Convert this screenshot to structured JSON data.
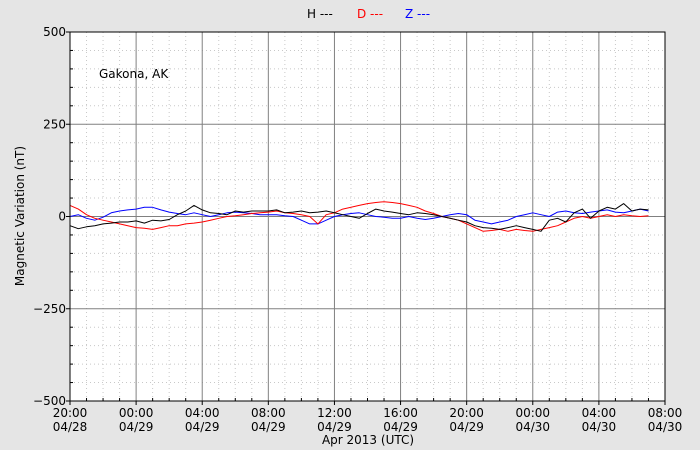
{
  "chart_data": {
    "type": "line",
    "title": "",
    "xlabel": "Apr 2013 (UTC)",
    "ylabel": "Magnetic Variation (nT)",
    "annotation": "Gakona, AK",
    "xlim": [
      0,
      36
    ],
    "ylim": [
      -500,
      500
    ],
    "y_ticks": [
      500,
      250,
      0,
      -250,
      -500
    ],
    "y_tick_labels": [
      "500",
      "250",
      "0",
      "−250",
      "−500"
    ],
    "x_ticks": [
      0,
      4,
      8,
      12,
      16,
      20,
      24,
      28,
      32,
      36
    ],
    "x_tick_labels": [
      [
        "20:00",
        "04/28"
      ],
      [
        "00:00",
        "04/29"
      ],
      [
        "04:00",
        "04/29"
      ],
      [
        "08:00",
        "04/29"
      ],
      [
        "12:00",
        "04/29"
      ],
      [
        "16:00",
        "04/29"
      ],
      [
        "20:00",
        "04/29"
      ],
      [
        "00:00",
        "04/30"
      ],
      [
        "04:00",
        "04/30"
      ],
      [
        "08:00",
        "04/30"
      ]
    ],
    "grid": true,
    "legend": [
      {
        "label": "H ---",
        "color": "#000000"
      },
      {
        "label": "D ---",
        "color": "#ff0000"
      },
      {
        "label": "Z ---",
        "color": "#0000ff"
      }
    ],
    "series": [
      {
        "color": "#000000",
        "x": [
          0,
          0.5,
          1,
          1.5,
          2,
          2.5,
          3,
          3.5,
          4,
          4.5,
          5,
          5.5,
          6,
          6.5,
          7,
          7.5,
          8,
          8.5,
          9,
          9.5,
          10,
          10.5,
          11,
          11.5,
          12,
          12.5,
          13,
          13.5,
          14,
          14.5,
          15,
          15.5,
          16,
          16.5,
          17,
          17.5,
          18,
          18.5,
          19,
          19.5,
          20,
          20.5,
          21,
          21.5,
          22,
          22.5,
          23,
          23.5,
          24,
          24.5,
          25,
          25.5,
          26,
          26.5,
          27,
          27.5,
          28,
          28.5,
          29,
          29.5,
          30,
          30.5,
          31,
          31.5,
          32,
          32.5,
          33,
          33.5,
          34,
          34.5,
          35
        ],
        "y": [
          -25,
          -33,
          -28,
          -25,
          -20,
          -18,
          -15,
          -15,
          -12,
          -18,
          -10,
          -12,
          -8,
          5,
          15,
          30,
          18,
          10,
          8,
          5,
          15,
          12,
          15,
          15,
          15,
          18,
          10,
          12,
          15,
          10,
          12,
          15,
          10,
          5,
          0,
          -5,
          8,
          20,
          15,
          12,
          8,
          5,
          10,
          8,
          5,
          0,
          -5,
          -10,
          -15,
          -25,
          -30,
          -32,
          -35,
          -30,
          -25,
          -30,
          -35,
          -40,
          -10,
          -5,
          -15,
          10,
          20,
          -5,
          15,
          25,
          20,
          35,
          15,
          20,
          18
        ]
      },
      {
        "color": "#ff0000",
        "x": [
          0,
          0.5,
          1,
          1.5,
          2,
          2.5,
          3,
          3.5,
          4,
          4.5,
          5,
          5.5,
          6,
          6.5,
          7,
          7.5,
          8,
          8.5,
          9,
          9.5,
          10,
          10.5,
          11,
          11.5,
          12,
          12.5,
          13,
          13.5,
          14,
          14.5,
          15,
          15.5,
          16,
          16.5,
          17,
          17.5,
          18,
          18.5,
          19,
          19.5,
          20,
          20.5,
          21,
          21.5,
          22,
          22.5,
          23,
          23.5,
          24,
          24.5,
          25,
          25.5,
          26,
          26.5,
          27,
          27.5,
          28,
          28.5,
          29,
          29.5,
          30,
          30.5,
          31,
          31.5,
          32,
          32.5,
          33,
          33.5,
          34,
          34.5,
          35
        ],
        "y": [
          30,
          20,
          5,
          -5,
          -10,
          -15,
          -20,
          -25,
          -30,
          -32,
          -35,
          -30,
          -25,
          -25,
          -20,
          -18,
          -15,
          -10,
          -5,
          0,
          2,
          5,
          8,
          10,
          12,
          15,
          10,
          8,
          5,
          0,
          -20,
          5,
          10,
          20,
          25,
          30,
          35,
          38,
          40,
          38,
          35,
          30,
          25,
          15,
          8,
          0,
          -5,
          -10,
          -20,
          -30,
          -40,
          -38,
          -35,
          -40,
          -35,
          -38,
          -40,
          -35,
          -30,
          -25,
          -15,
          -5,
          0,
          -5,
          0,
          5,
          0,
          5,
          2,
          0,
          2
        ]
      },
      {
        "color": "#0000ff",
        "x": [
          0,
          0.5,
          1,
          1.5,
          2,
          2.5,
          3,
          3.5,
          4,
          4.5,
          5,
          5.5,
          6,
          6.5,
          7,
          7.5,
          8,
          8.5,
          9,
          9.5,
          10,
          10.5,
          11,
          11.5,
          12,
          12.5,
          13,
          13.5,
          14,
          14.5,
          15,
          15.5,
          16,
          16.5,
          17,
          17.5,
          18,
          18.5,
          19,
          19.5,
          20,
          20.5,
          21,
          21.5,
          22,
          22.5,
          23,
          23.5,
          24,
          24.5,
          25,
          25.5,
          26,
          26.5,
          27,
          27.5,
          28,
          28.5,
          29,
          29.5,
          30,
          30.5,
          31,
          31.5,
          32,
          32.5,
          33,
          33.5,
          34,
          34.5,
          35
        ],
        "y": [
          0,
          5,
          -5,
          -10,
          -2,
          10,
          15,
          18,
          20,
          25,
          25,
          18,
          12,
          8,
          5,
          10,
          5,
          0,
          5,
          10,
          12,
          10,
          8,
          5,
          5,
          5,
          2,
          0,
          -10,
          -20,
          -20,
          -10,
          0,
          5,
          8,
          10,
          5,
          0,
          -2,
          -5,
          -5,
          0,
          -5,
          -8,
          -5,
          0,
          5,
          8,
          5,
          -10,
          -15,
          -20,
          -15,
          -10,
          0,
          5,
          10,
          5,
          0,
          12,
          15,
          10,
          8,
          12,
          15,
          18,
          12,
          10,
          15,
          20,
          15
        ]
      }
    ]
  }
}
